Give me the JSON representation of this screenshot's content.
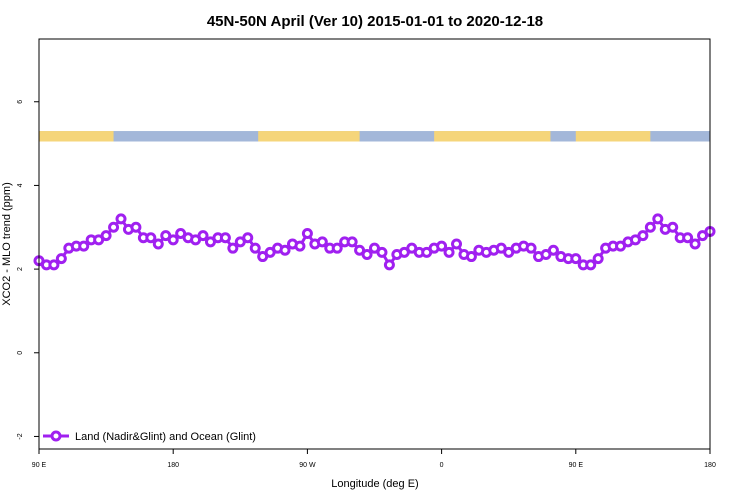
{
  "chart_data": {
    "type": "line",
    "title": "45N-50N April (Ver 10)   2015-01-01 to 2020-12-18",
    "xlabel": "Longitude (deg E)",
    "ylabel": "XCO2 - MLO trend (ppm)",
    "x_ticks": [
      {
        "value": 90,
        "label": "90 E"
      },
      {
        "value": 180,
        "label": "180"
      },
      {
        "value": 270,
        "label": "90 W"
      },
      {
        "value": 360,
        "label": "0"
      },
      {
        "value": 450,
        "label": "90 E"
      },
      {
        "value": 540,
        "label": "180"
      }
    ],
    "y_ticks": [
      {
        "value": -2,
        "label": "-2"
      },
      {
        "value": 0,
        "label": "0"
      },
      {
        "value": 2,
        "label": "2"
      },
      {
        "value": 4,
        "label": "4"
      },
      {
        "value": 6,
        "label": "6"
      }
    ],
    "xlim": [
      90,
      540
    ],
    "ylim": [
      -2.3,
      7.5
    ],
    "grid": false,
    "legend_position": "bottom-left",
    "land_mask": {
      "y_range": [
        5.05,
        5.3
      ],
      "ocean_color": "#a3b7d9",
      "land_color": "#f5d57a",
      "land_segments": [
        [
          90,
          140
        ],
        [
          237,
          305
        ],
        [
          355,
          433
        ],
        [
          450,
          500
        ]
      ]
    },
    "series": [
      {
        "name": "Land (Nadir&Glint) and Ocean (Glint)",
        "color": "#a020f0",
        "x": [
          90,
          95,
          100,
          105,
          110,
          115,
          120,
          125,
          130,
          135,
          140,
          145,
          150,
          155,
          160,
          165,
          170,
          175,
          180,
          185,
          190,
          195,
          200,
          205,
          210,
          215,
          220,
          225,
          230,
          235,
          240,
          245,
          250,
          255,
          260,
          265,
          270,
          275,
          280,
          285,
          290,
          295,
          300,
          305,
          310,
          315,
          320,
          325,
          330,
          335,
          340,
          345,
          350,
          355,
          360,
          365,
          370,
          375,
          380,
          385,
          390,
          395,
          400,
          405,
          410,
          415,
          420,
          425,
          430,
          435,
          440,
          445,
          450,
          455,
          460,
          465,
          470,
          475,
          480,
          485,
          490,
          495,
          500,
          505,
          510,
          515,
          520,
          525,
          530,
          535,
          540
        ],
        "values": [
          2.2,
          2.1,
          2.1,
          2.25,
          2.5,
          2.55,
          2.55,
          2.7,
          2.7,
          2.8,
          3.0,
          3.2,
          2.95,
          3.0,
          2.75,
          2.75,
          2.6,
          2.8,
          2.7,
          2.85,
          2.75,
          2.7,
          2.8,
          2.65,
          2.75,
          2.75,
          2.5,
          2.65,
          2.75,
          2.5,
          2.3,
          2.4,
          2.5,
          2.45,
          2.6,
          2.55,
          2.85,
          2.6,
          2.65,
          2.5,
          2.5,
          2.65,
          2.65,
          2.45,
          2.35,
          2.5,
          2.4,
          2.1,
          2.35,
          2.4,
          2.5,
          2.4,
          2.4,
          2.5,
          2.55,
          2.4,
          2.6,
          2.35,
          2.3,
          2.45,
          2.4,
          2.45,
          2.5,
          2.4,
          2.5,
          2.55,
          2.5,
          2.3,
          2.35,
          2.45,
          2.3,
          2.25,
          2.25,
          2.1,
          2.1,
          2.25,
          2.5,
          2.55,
          2.55,
          2.65,
          2.7,
          2.8,
          3.0,
          3.2,
          2.95,
          3.0,
          2.75,
          2.75,
          2.6,
          2.8,
          2.9
        ]
      }
    ]
  }
}
